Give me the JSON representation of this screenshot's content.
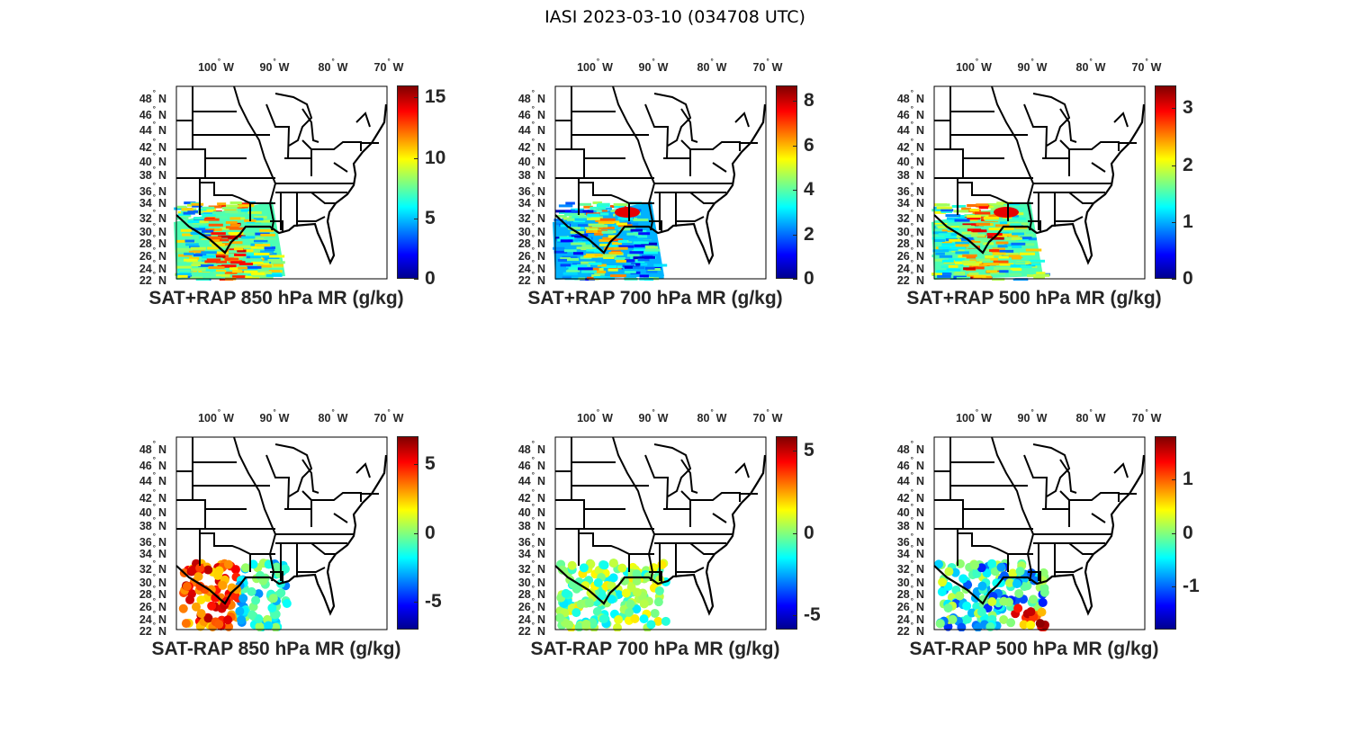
{
  "figure_title": "IASI 2023-03-10 (034708 UTC)",
  "lon_labels": [
    {
      "value": "100",
      "hemi": "W"
    },
    {
      "value": "90",
      "hemi": "W"
    },
    {
      "value": "80",
      "hemi": "W"
    },
    {
      "value": "70",
      "hemi": "W"
    }
  ],
  "lat_labels": [
    {
      "value": "48",
      "hemi": "N"
    },
    {
      "value": "46",
      "hemi": "N"
    },
    {
      "value": "44",
      "hemi": "N"
    },
    {
      "value": "42",
      "hemi": "N"
    },
    {
      "value": "40",
      "hemi": "N"
    },
    {
      "value": "38",
      "hemi": "N"
    },
    {
      "value": "36",
      "hemi": "N"
    },
    {
      "value": "34",
      "hemi": "N"
    },
    {
      "value": "32",
      "hemi": "N"
    },
    {
      "value": "30",
      "hemi": "N"
    },
    {
      "value": "28",
      "hemi": "N"
    },
    {
      "value": "26",
      "hemi": "N"
    },
    {
      "value": "24",
      "hemi": "N"
    },
    {
      "value": "22",
      "hemi": "N"
    }
  ],
  "degree_symbol": "°",
  "panels": [
    {
      "title": "SAT+RAP 850 hPa MR (g/kg)",
      "kind": "swath",
      "cbar_range": [
        0,
        16
      ],
      "cbar_ticks": [
        "0",
        "5",
        "10",
        "15"
      ]
    },
    {
      "title": "SAT+RAP 700 hPa MR (g/kg)",
      "kind": "swath",
      "cbar_range": [
        0,
        8.7
      ],
      "cbar_ticks": [
        "0",
        "2",
        "4",
        "6",
        "8"
      ]
    },
    {
      "title": "SAT+RAP 500 hPa MR (g/kg)",
      "kind": "swath",
      "cbar_range": [
        0,
        3.4
      ],
      "cbar_ticks": [
        "0",
        "1",
        "2",
        "3"
      ]
    },
    {
      "title": "SAT-RAP 850 hPa MR (g/kg)",
      "kind": "scatter",
      "cbar_range": [
        -7,
        7
      ],
      "cbar_ticks": [
        "-5",
        "0",
        "5"
      ]
    },
    {
      "title": "SAT-RAP 700 hPa MR (g/kg)",
      "kind": "scatter",
      "cbar_range": [
        -5.9,
        5.9
      ],
      "cbar_ticks": [
        "-5",
        "0",
        "5"
      ]
    },
    {
      "title": "SAT-RAP 500 hPa MR (g/kg)",
      "kind": "scatter",
      "cbar_range": [
        -1.8,
        1.8
      ],
      "cbar_ticks": [
        "-1",
        "0",
        "1"
      ]
    }
  ]
}
